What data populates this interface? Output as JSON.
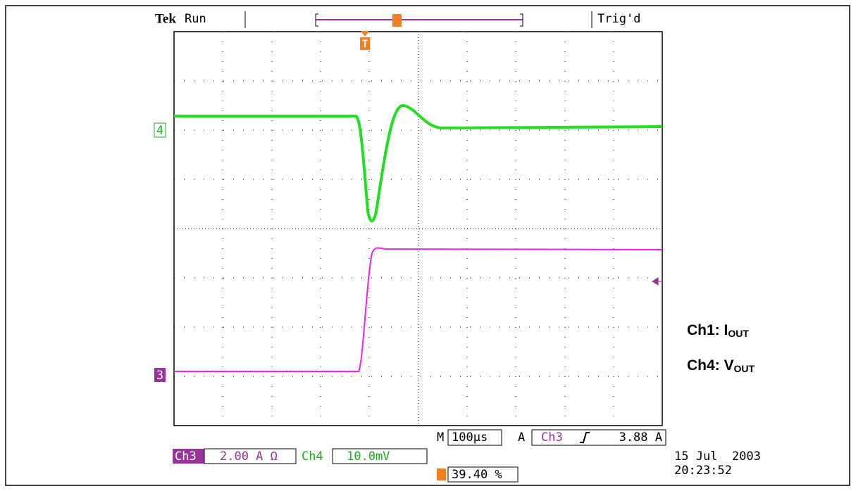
{
  "header": {
    "brand": "Tek",
    "status": "Run",
    "trigger_state": "Trig'd",
    "trigger_marker": "T"
  },
  "markers": {
    "ch4": "4",
    "ch3": "3"
  },
  "timebase": {
    "label": "M",
    "value": "100µs"
  },
  "trigger": {
    "label": "A",
    "source": "Ch3",
    "level": "3.88 A"
  },
  "channels": [
    {
      "name": "Ch3",
      "scale": "2.00 A Ω"
    },
    {
      "name": "Ch4",
      "scale": "10.0mV"
    }
  ],
  "position": "39.40 %",
  "date": "15 Jul  2003",
  "time": "20:23:52",
  "legend": [
    {
      "prefix": "Ch1: I",
      "sub": "OUT"
    },
    {
      "prefix": "Ch4: V",
      "sub": "OUT"
    }
  ]
}
